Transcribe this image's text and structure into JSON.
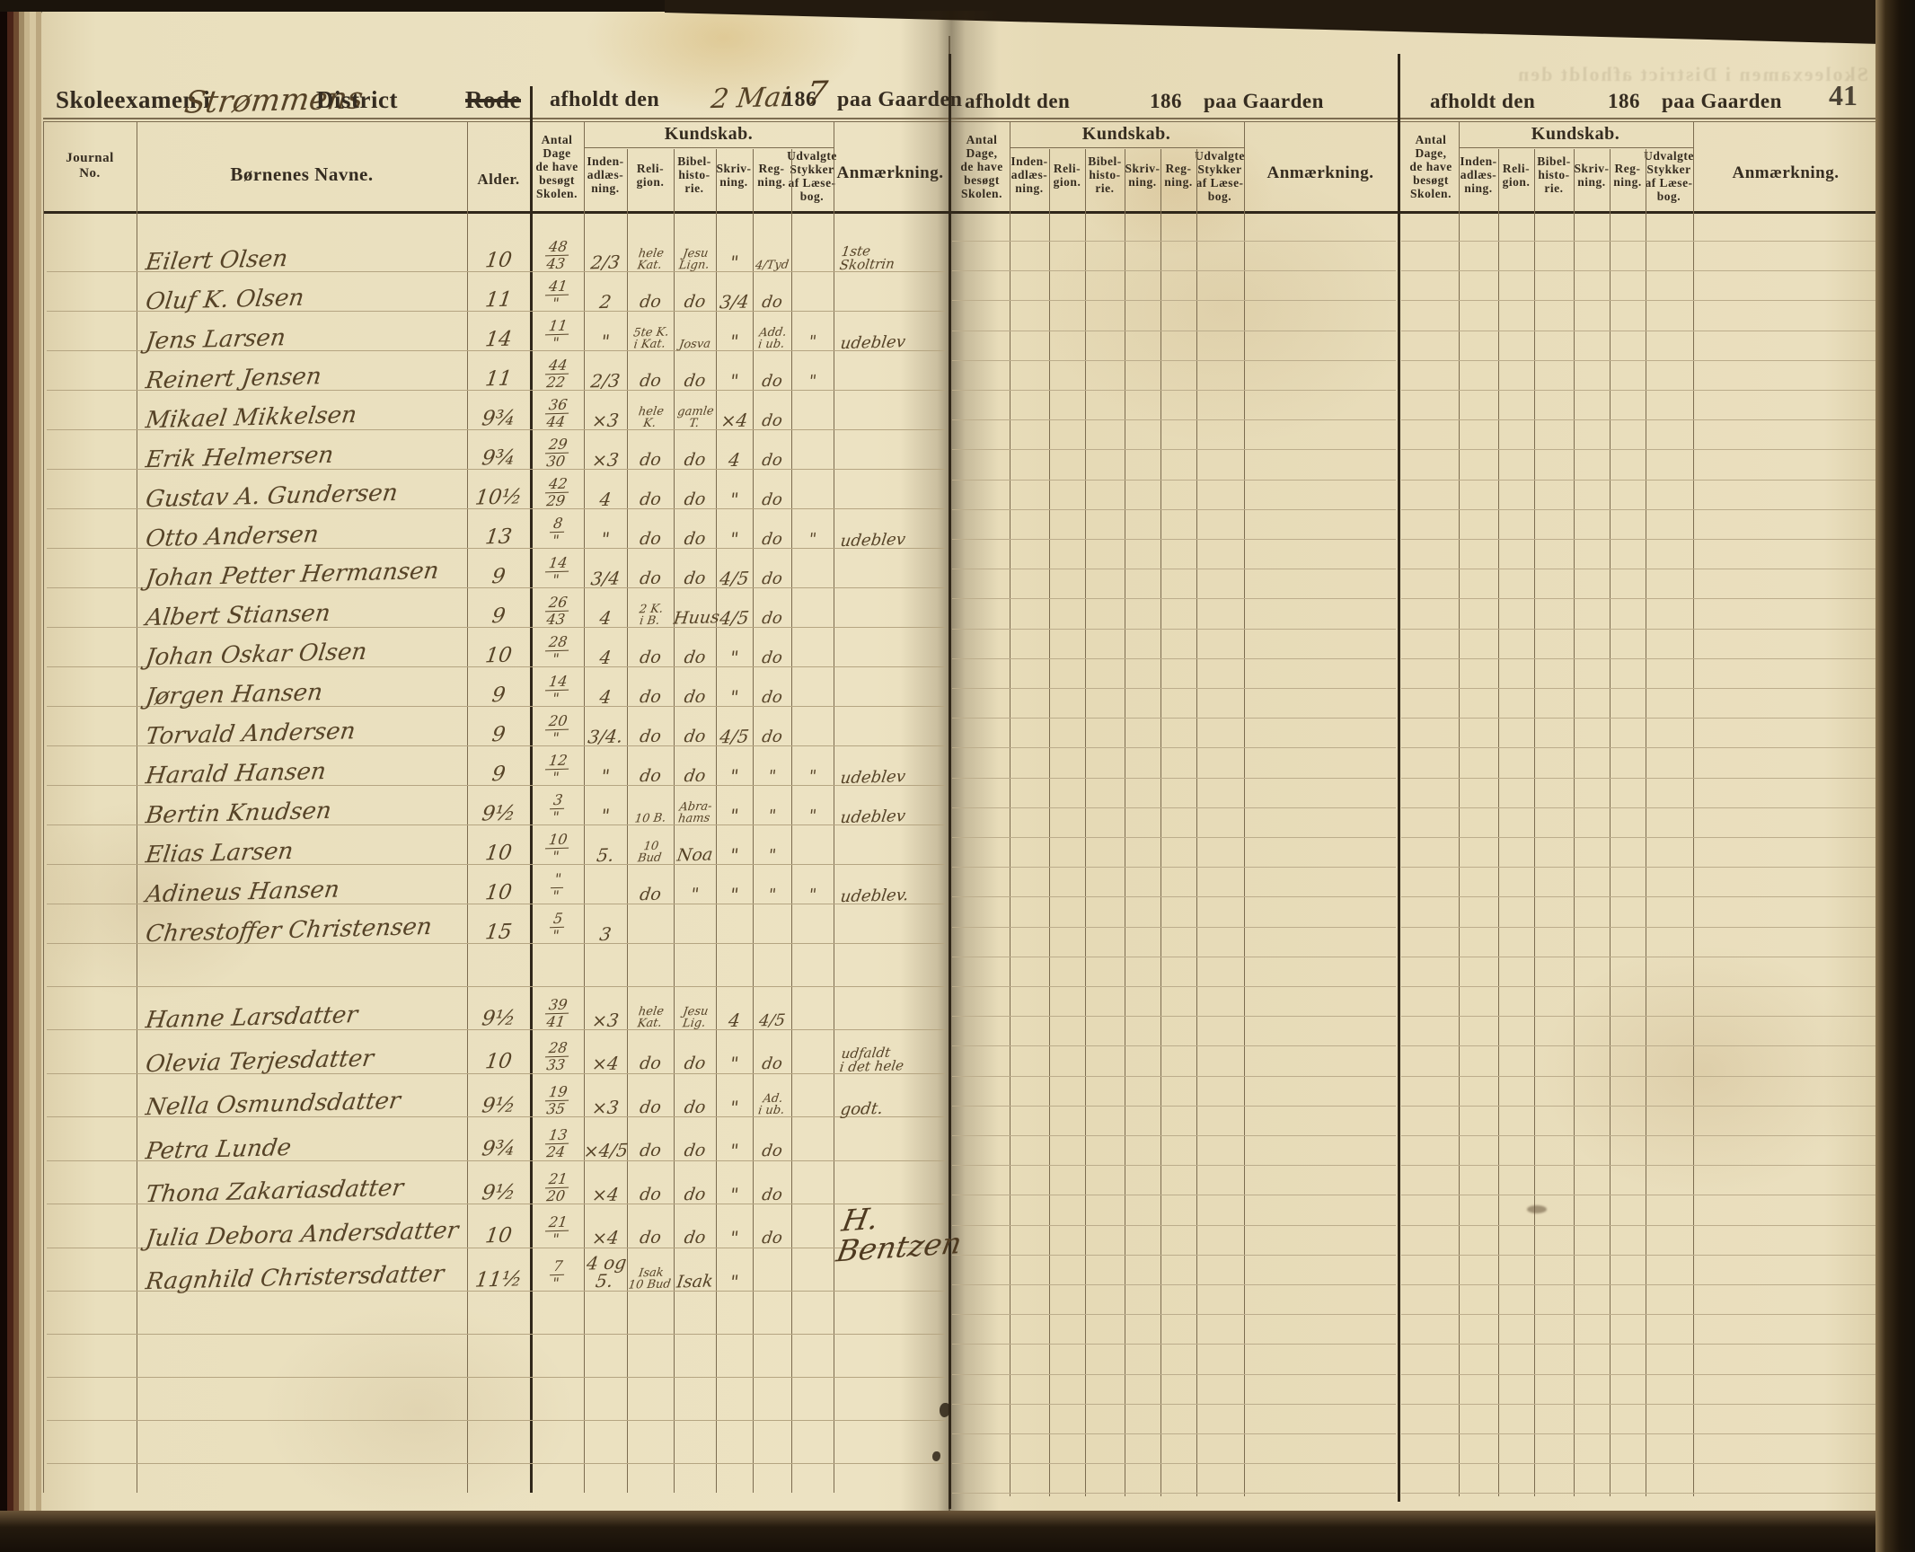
{
  "page_number": "41",
  "header": {
    "title_prefix": "Skoleexamen i",
    "district_handwritten": "Strømmens",
    "title_suffix": "District",
    "rode_label": "Rode",
    "afholdt_label": "afholdt den",
    "date_handwritten": "2 Mai",
    "year_printed": "186",
    "year_digit_handwritten": "7",
    "gaarden_label": "paa Gaarden",
    "ghost_bleed": "Skoleexamen i      District      afholdt den"
  },
  "columns": {
    "journal": "Journal\nNo.",
    "names": "Børnenes Navne.",
    "alder": "Alder.",
    "dage": "Antal\nDage\nde have\nbesøgt\nSkolen.",
    "dage_alt": "Antal\nDage,\nde have\nbesøgt\nSkolen.",
    "kundskab": "Kundskab.",
    "sub": [
      "Inden-\nadlæs-\nning.",
      "Reli-\ngion.",
      "Bibel-\nhisto-\nrie.",
      "Skriv-\nning.",
      "Reg-\nning.",
      "Udvalgte\nStykker\naf Læse-\nbog."
    ],
    "anm": "Anmærkning."
  },
  "register": {
    "rows": [
      {
        "grp": "b",
        "name": "Eilert Olsen",
        "alder": "10",
        "dage": "48/43",
        "inden": "2/3",
        "rel": "hele\nKat.",
        "bib": "Jesu\nLign.",
        "skr": "\"",
        "reg": "4/Tyd",
        "udv": "",
        "anm": "1ste\nSkoltrin"
      },
      {
        "grp": "b",
        "name": "Oluf K. Olsen",
        "alder": "11",
        "dage": "41/\"",
        "inden": "2",
        "rel": "do",
        "bib": "do",
        "skr": "3/4",
        "reg": "do",
        "udv": "",
        "anm": ""
      },
      {
        "grp": "b",
        "name": "Jens Larsen",
        "alder": "14",
        "dage": "11/\"",
        "inden": "\"",
        "rel": "5te K.\ni Kat.",
        "bib": "Josva",
        "skr": "\"",
        "reg": "Add.\ni ub.",
        "udv": "\"",
        "anm": "udeblev"
      },
      {
        "grp": "b",
        "name": "Reinert Jensen",
        "alder": "11",
        "dage": "44/22",
        "inden": "2/3",
        "rel": "do",
        "bib": "do",
        "skr": "\"",
        "reg": "do",
        "udv": "\"",
        "anm": ""
      },
      {
        "grp": "b",
        "name": "Mikael Mikkelsen",
        "alder": "9¾",
        "dage": "36/44",
        "inden": "×3",
        "rel": "hele\nK.",
        "bib": "gamle\nT.",
        "skr": "×4",
        "reg": "do",
        "udv": "",
        "anm": ""
      },
      {
        "grp": "b",
        "name": "Erik Helmersen",
        "alder": "9¾",
        "dage": "29/30",
        "inden": "×3",
        "rel": "do",
        "bib": "do",
        "skr": "4",
        "reg": "do",
        "udv": "",
        "anm": ""
      },
      {
        "grp": "b",
        "name": "Gustav A. Gundersen",
        "alder": "10½",
        "dage": "42/29",
        "inden": "4",
        "rel": "do",
        "bib": "do",
        "skr": "\"",
        "reg": "do",
        "udv": "",
        "anm": ""
      },
      {
        "grp": "b",
        "name": "Otto Andersen",
        "alder": "13",
        "dage": "8/\"",
        "inden": "\"",
        "rel": "do",
        "bib": "do",
        "skr": "\"",
        "reg": "do",
        "udv": "\"",
        "anm": "udeblev"
      },
      {
        "grp": "b",
        "name": "Johan Petter Hermansen",
        "alder": "9",
        "dage": "14/\"",
        "inden": "3/4",
        "rel": "do",
        "bib": "do",
        "skr": "4/5",
        "reg": "do",
        "udv": "",
        "anm": ""
      },
      {
        "grp": "b",
        "name": "Albert Stiansen",
        "alder": "9",
        "dage": "26/43",
        "inden": "4",
        "rel": "2 K.\ni B.",
        "bib": "Huus",
        "skr": "4/5",
        "reg": "do",
        "udv": "",
        "anm": ""
      },
      {
        "grp": "b",
        "name": "Johan Oskar Olsen",
        "alder": "10",
        "dage": "28/\"",
        "inden": "4",
        "rel": "do",
        "bib": "do",
        "skr": "\"",
        "reg": "do",
        "udv": "",
        "anm": ""
      },
      {
        "grp": "b",
        "name": "Jørgen Hansen",
        "alder": "9",
        "dage": "14/\"",
        "inden": "4",
        "rel": "do",
        "bib": "do",
        "skr": "\"",
        "reg": "do",
        "udv": "",
        "anm": ""
      },
      {
        "grp": "b",
        "name": "Torvald Andersen",
        "alder": "9",
        "dage": "20/\"",
        "inden": "3/4.",
        "rel": "do",
        "bib": "do",
        "skr": "4/5",
        "reg": "do",
        "udv": "",
        "anm": ""
      },
      {
        "grp": "b",
        "name": "Harald Hansen",
        "alder": "9",
        "dage": "12/\"",
        "inden": "\"",
        "rel": "do",
        "bib": "do",
        "skr": "\"",
        "reg": "\"",
        "udv": "\"",
        "anm": "udeblev"
      },
      {
        "grp": "b",
        "name": "Bertin Knudsen",
        "alder": "9½",
        "dage": "3/\"",
        "inden": "\"",
        "rel": "10 B.",
        "bib": "Abra-\nhams",
        "skr": "\"",
        "reg": "\"",
        "udv": "\"",
        "anm": "udeblev"
      },
      {
        "grp": "b",
        "name": "Elias Larsen",
        "alder": "10",
        "dage": "10/\"",
        "inden": "5.",
        "rel": "10\nBud",
        "bib": "Noa",
        "skr": "\"",
        "reg": "\"",
        "udv": "",
        "anm": ""
      },
      {
        "grp": "b",
        "name": "Adineus Hansen",
        "alder": "10",
        "dage": "\"/\"",
        "inden": "",
        "rel": "do",
        "bib": "\"",
        "skr": "\"",
        "reg": "\"",
        "udv": "\"",
        "anm": "udeblev."
      },
      {
        "grp": "b",
        "name": "Chrestoffer Christensen",
        "alder": "15",
        "dage": "5/\"",
        "inden": "3",
        "rel": "",
        "bib": "",
        "skr": "",
        "reg": "",
        "udv": "",
        "anm": ""
      },
      {
        "grp": "g",
        "name": "Hanne Larsdatter",
        "alder": "9½",
        "dage": "39/41",
        "inden": "×3",
        "rel": "hele\nKat.",
        "bib": "Jesu\nLig.",
        "skr": "4",
        "reg": "4/5",
        "udv": "",
        "anm": ""
      },
      {
        "grp": "g",
        "name": "Olevia Terjesdatter",
        "alder": "10",
        "dage": "28/33",
        "inden": "×4",
        "rel": "do",
        "bib": "do",
        "skr": "\"",
        "reg": "do",
        "udv": "",
        "anm": "udfaldt\ni det hele"
      },
      {
        "grp": "g",
        "name": "Nella Osmundsdatter",
        "alder": "9½",
        "dage": "19/35",
        "inden": "×3",
        "rel": "do",
        "bib": "do",
        "skr": "\"",
        "reg": "Ad.\ni ub.",
        "udv": "",
        "anm": "godt."
      },
      {
        "grp": "g",
        "name": "Petra Lunde",
        "alder": "9¾",
        "dage": "13/24",
        "inden": "×4/5",
        "rel": "do",
        "bib": "do",
        "skr": "\"",
        "reg": "do",
        "udv": "",
        "anm": ""
      },
      {
        "grp": "g",
        "name": "Thona Zakariasdatter",
        "alder": "9½",
        "dage": "21/20",
        "inden": "×4",
        "rel": "do",
        "bib": "do",
        "skr": "\"",
        "reg": "do",
        "udv": "",
        "anm": ""
      },
      {
        "grp": "g",
        "name": "Julia Debora Andersdatter",
        "alder": "10",
        "dage": "21/\"",
        "inden": "×4",
        "rel": "do",
        "bib": "do",
        "skr": "\"",
        "reg": "do",
        "udv": "",
        "anm": "H. Bentzen",
        "sig": true
      },
      {
        "grp": "g",
        "name": "Ragnhild Christersdatter",
        "alder": "11½",
        "dage": "7/\"",
        "inden": "4 og\n5.",
        "rel": "Isak\n10 Bud",
        "bib": "Isak",
        "skr": "\"",
        "reg": "",
        "udv": "",
        "anm": ""
      }
    ]
  }
}
